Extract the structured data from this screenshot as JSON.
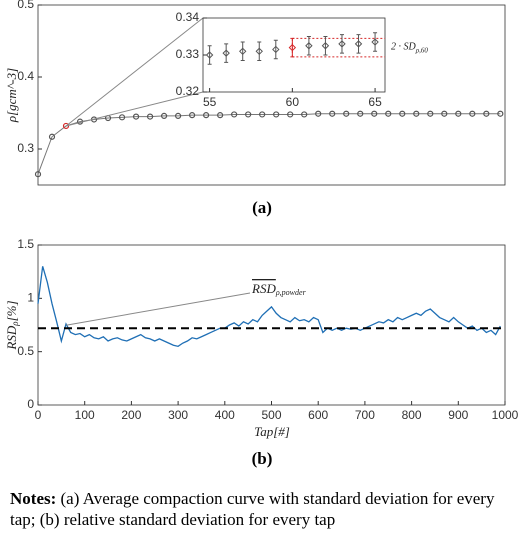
{
  "chart_data": [
    {
      "type": "scatter",
      "caption": "(a)",
      "ylabel": "ρ[gcm^-3]",
      "xlim": [
        0,
        1000
      ],
      "ylim": [
        0.25,
        0.5
      ],
      "yticks": [
        0.3,
        0.4,
        0.5
      ],
      "color": "#555555",
      "highlight_x": 60,
      "highlight_color": "#d62728",
      "x": [
        0,
        30,
        60,
        90,
        120,
        150,
        180,
        210,
        240,
        270,
        300,
        330,
        360,
        390,
        420,
        450,
        480,
        510,
        540,
        570,
        600,
        630,
        660,
        690,
        720,
        750,
        780,
        810,
        840,
        870,
        900,
        930,
        960,
        990
      ],
      "values": [
        0.265,
        0.317,
        0.332,
        0.338,
        0.341,
        0.343,
        0.344,
        0.345,
        0.345,
        0.346,
        0.346,
        0.347,
        0.347,
        0.347,
        0.348,
        0.348,
        0.348,
        0.348,
        0.348,
        0.348,
        0.349,
        0.349,
        0.349,
        0.349,
        0.349,
        0.349,
        0.349,
        0.349,
        0.349,
        0.349,
        0.349,
        0.349,
        0.349,
        0.349
      ]
    },
    {
      "type": "errorbar",
      "xlim": [
        54.6,
        65.6
      ],
      "ylim": [
        0.32,
        0.34
      ],
      "xticks": [
        55,
        60,
        65
      ],
      "yticks": [
        0.32,
        0.33,
        0.34
      ],
      "color": "#555555",
      "highlight_x": 60,
      "highlight_color": "#d62728",
      "x": [
        55,
        56,
        57,
        58,
        59,
        60,
        61,
        62,
        63,
        64,
        65
      ],
      "values": [
        0.33,
        0.3305,
        0.331,
        0.331,
        0.3315,
        0.332,
        0.3325,
        0.3325,
        0.333,
        0.333,
        0.3335
      ],
      "errors": [
        0.0025,
        0.0025,
        0.0025,
        0.0025,
        0.0025,
        0.0025,
        0.0025,
        0.0025,
        0.0025,
        0.0025,
        0.0025
      ],
      "band": [
        0.3295,
        0.3345
      ],
      "band_label": "2 · SD",
      "band_label_sub": "ρ,60"
    },
    {
      "type": "line",
      "caption": "(b)",
      "xlabel": "Tap[#]",
      "ylabel": "RSD",
      "ylabel_sub": "ρ",
      "ylabel_suffix": "[%]",
      "xlim": [
        0,
        1000
      ],
      "ylim": [
        0,
        1.5
      ],
      "xticks": [
        0,
        100,
        200,
        300,
        400,
        500,
        600,
        700,
        800,
        900,
        1000
      ],
      "yticks": [
        0,
        0.5,
        1,
        1.5
      ],
      "color": "#1f6fb5",
      "reference": {
        "value": 0.72,
        "label": "RSD",
        "label_sub": "ρ,powder"
      },
      "x": [
        0,
        10,
        20,
        30,
        40,
        50,
        60,
        70,
        80,
        90,
        100,
        110,
        120,
        130,
        140,
        150,
        160,
        170,
        180,
        190,
        200,
        210,
        220,
        230,
        240,
        250,
        260,
        270,
        280,
        290,
        300,
        310,
        320,
        330,
        340,
        350,
        360,
        370,
        380,
        390,
        400,
        410,
        420,
        430,
        440,
        450,
        460,
        470,
        480,
        490,
        500,
        510,
        520,
        530,
        540,
        550,
        560,
        570,
        580,
        590,
        600,
        610,
        620,
        630,
        640,
        650,
        660,
        670,
        680,
        690,
        700,
        710,
        720,
        730,
        740,
        750,
        760,
        770,
        780,
        790,
        800,
        810,
        820,
        830,
        840,
        850,
        860,
        870,
        880,
        890,
        900,
        910,
        920,
        930,
        940,
        950,
        960,
        970,
        980,
        990
      ],
      "values": [
        0.95,
        1.3,
        1.15,
        0.95,
        0.78,
        0.6,
        0.76,
        0.68,
        0.66,
        0.67,
        0.64,
        0.66,
        0.63,
        0.62,
        0.64,
        0.6,
        0.62,
        0.63,
        0.61,
        0.6,
        0.62,
        0.64,
        0.66,
        0.63,
        0.62,
        0.6,
        0.62,
        0.6,
        0.58,
        0.56,
        0.55,
        0.58,
        0.6,
        0.63,
        0.62,
        0.64,
        0.66,
        0.68,
        0.7,
        0.72,
        0.72,
        0.75,
        0.77,
        0.74,
        0.78,
        0.76,
        0.8,
        0.78,
        0.84,
        0.88,
        0.92,
        0.86,
        0.82,
        0.8,
        0.78,
        0.82,
        0.79,
        0.8,
        0.78,
        0.82,
        0.8,
        0.68,
        0.72,
        0.7,
        0.72,
        0.7,
        0.72,
        0.71,
        0.72,
        0.7,
        0.72,
        0.74,
        0.76,
        0.78,
        0.77,
        0.8,
        0.78,
        0.82,
        0.8,
        0.82,
        0.84,
        0.86,
        0.84,
        0.88,
        0.9,
        0.86,
        0.82,
        0.8,
        0.78,
        0.82,
        0.78,
        0.75,
        0.72,
        0.74,
        0.7,
        0.72,
        0.68,
        0.7,
        0.66,
        0.74
      ]
    }
  ],
  "notes": {
    "label": "Notes:",
    "text": " (a) Average compaction curve with standard deviation for every tap; (b) relative standard deviation for every tap"
  }
}
